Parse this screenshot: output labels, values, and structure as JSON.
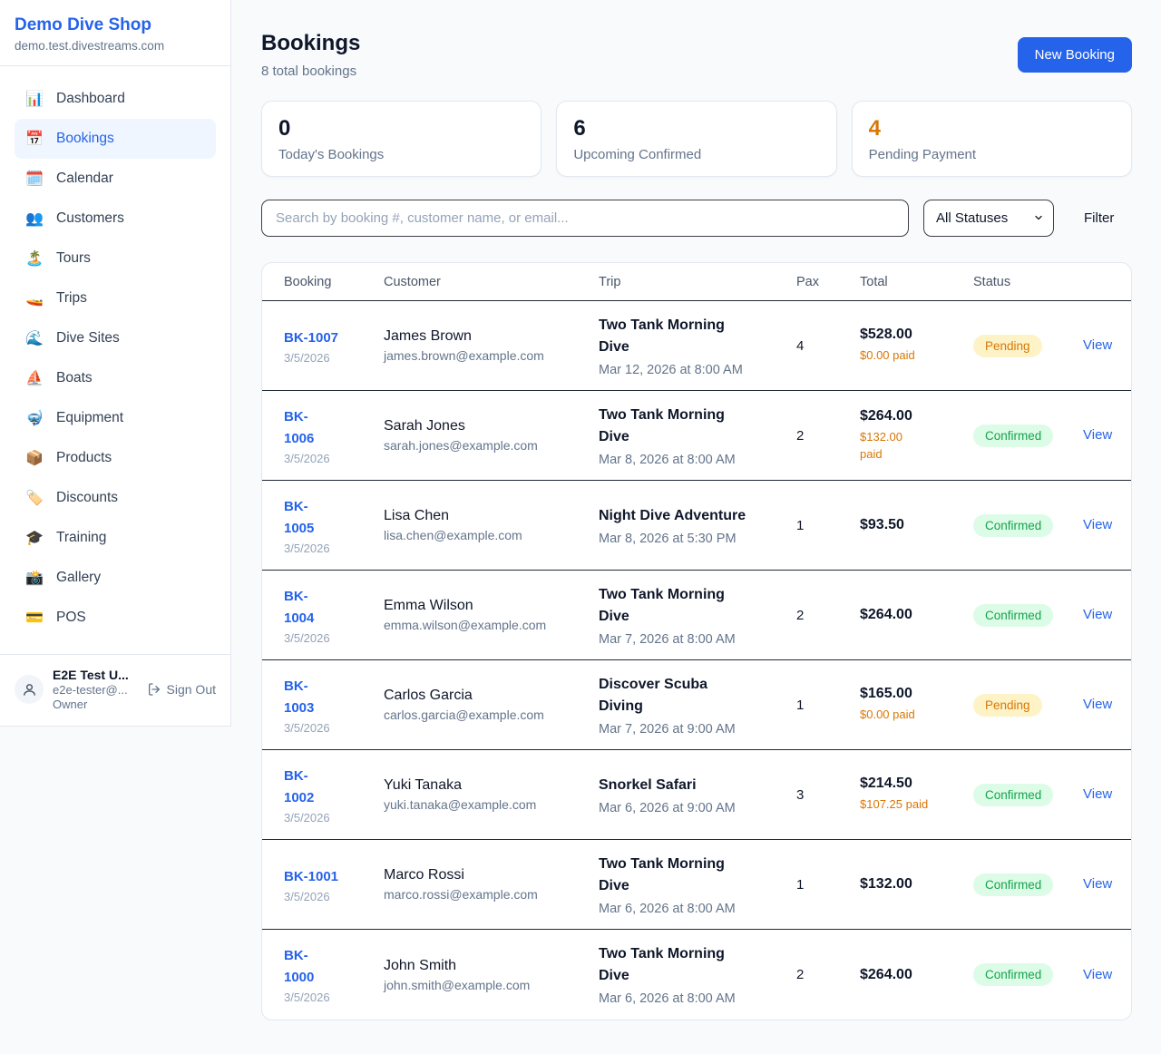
{
  "colors": {
    "accent": "#2563eb",
    "pending_text": "#d97706",
    "pending_bg": "#fef3c7",
    "confirmed_text": "#16a34a",
    "confirmed_bg": "#dcfce7",
    "stat_warning": "#d97706"
  },
  "sidebar": {
    "shop_name": "Demo Dive Shop",
    "domain": "demo.test.divestreams.com",
    "items": [
      {
        "icon": "📊",
        "icon_name": "bar-chart-icon",
        "label": "Dashboard",
        "active": false
      },
      {
        "icon": "📅",
        "icon_name": "calendar-icon",
        "label": "Bookings",
        "active": true
      },
      {
        "icon": "🗓️",
        "icon_name": "spiral-calendar-icon",
        "label": "Calendar",
        "active": false
      },
      {
        "icon": "👥",
        "icon_name": "people-icon",
        "label": "Customers",
        "active": false
      },
      {
        "icon": "🏝️",
        "icon_name": "island-icon",
        "label": "Tours",
        "active": false
      },
      {
        "icon": "🚤",
        "icon_name": "speedboat-icon",
        "label": "Trips",
        "active": false
      },
      {
        "icon": "🌊",
        "icon_name": "wave-icon",
        "label": "Dive Sites",
        "active": false
      },
      {
        "icon": "⛵",
        "icon_name": "sailboat-icon",
        "label": "Boats",
        "active": false
      },
      {
        "icon": "🤿",
        "icon_name": "diving-mask-icon",
        "label": "Equipment",
        "active": false
      },
      {
        "icon": "📦",
        "icon_name": "package-icon",
        "label": "Products",
        "active": false
      },
      {
        "icon": "🏷️",
        "icon_name": "tag-icon",
        "label": "Discounts",
        "active": false
      },
      {
        "icon": "🎓",
        "icon_name": "graduation-cap-icon",
        "label": "Training",
        "active": false
      },
      {
        "icon": "📸",
        "icon_name": "camera-icon",
        "label": "Gallery",
        "active": false
      },
      {
        "icon": "💳",
        "icon_name": "credit-card-icon",
        "label": "POS",
        "active": false
      }
    ],
    "user": {
      "name": "E2E Test U...",
      "email": "e2e-tester@...",
      "role": "Owner",
      "sign_out_label": "Sign Out"
    }
  },
  "header": {
    "title": "Bookings",
    "subtitle": "8 total bookings",
    "new_booking_label": "New Booking"
  },
  "stats": [
    {
      "value": "0",
      "label": "Today's Bookings",
      "highlight": false
    },
    {
      "value": "6",
      "label": "Upcoming Confirmed",
      "highlight": false
    },
    {
      "value": "4",
      "label": "Pending Payment",
      "highlight": true
    }
  ],
  "filters": {
    "search_placeholder": "Search by booking #, customer name, or email...",
    "status_selected": "All Statuses",
    "filter_label": "Filter"
  },
  "table": {
    "columns": [
      "Booking",
      "Customer",
      "Trip",
      "Pax",
      "Total",
      "Status"
    ],
    "view_label": "View",
    "rows": [
      {
        "number": "BK-1007",
        "date": "3/5/2026",
        "customer": "James Brown",
        "email": "james.brown@example.com",
        "trip": "Two Tank Morning\nDive",
        "trip_datetime": "Mar 12, 2026 at 8:00 AM",
        "pax": "4",
        "total": "$528.00",
        "paid": "$0.00 paid",
        "status": "Pending"
      },
      {
        "number": "BK-\n1006",
        "date": "3/5/2026",
        "customer": "Sarah Jones",
        "email": "sarah.jones@example.com",
        "trip": "Two Tank Morning\nDive",
        "trip_datetime": "Mar 8, 2026 at 8:00 AM",
        "pax": "2",
        "total": "$264.00",
        "paid": "$132.00\npaid",
        "status": "Confirmed"
      },
      {
        "number": "BK-\n1005",
        "date": "3/5/2026",
        "customer": "Lisa Chen",
        "email": "lisa.chen@example.com",
        "trip": "Night Dive Adventure",
        "trip_datetime": "Mar 8, 2026 at 5:30 PM",
        "pax": "1",
        "total": "$93.50",
        "paid": "",
        "status": "Confirmed"
      },
      {
        "number": "BK-\n1004",
        "date": "3/5/2026",
        "customer": "Emma Wilson",
        "email": "emma.wilson@example.com",
        "trip": "Two Tank Morning\nDive",
        "trip_datetime": "Mar 7, 2026 at 8:00 AM",
        "pax": "2",
        "total": "$264.00",
        "paid": "",
        "status": "Confirmed"
      },
      {
        "number": "BK-\n1003",
        "date": "3/5/2026",
        "customer": "Carlos Garcia",
        "email": "carlos.garcia@example.com",
        "trip": "Discover Scuba\nDiving",
        "trip_datetime": "Mar 7, 2026 at 9:00 AM",
        "pax": "1",
        "total": "$165.00",
        "paid": "$0.00 paid",
        "status": "Pending"
      },
      {
        "number": "BK-\n1002",
        "date": "3/5/2026",
        "customer": "Yuki Tanaka",
        "email": "yuki.tanaka@example.com",
        "trip": "Snorkel Safari",
        "trip_datetime": "Mar 6, 2026 at 9:00 AM",
        "pax": "3",
        "total": "$214.50",
        "paid": "$107.25 paid",
        "status": "Confirmed"
      },
      {
        "number": "BK-1001",
        "date": "3/5/2026",
        "customer": "Marco Rossi",
        "email": "marco.rossi@example.com",
        "trip": "Two Tank Morning\nDive",
        "trip_datetime": "Mar 6, 2026 at 8:00 AM",
        "pax": "1",
        "total": "$132.00",
        "paid": "",
        "status": "Confirmed"
      },
      {
        "number": "BK-\n1000",
        "date": "3/5/2026",
        "customer": "John Smith",
        "email": "john.smith@example.com",
        "trip": "Two Tank Morning\nDive",
        "trip_datetime": "Mar 6, 2026 at 8:00 AM",
        "pax": "2",
        "total": "$264.00",
        "paid": "",
        "status": "Confirmed"
      }
    ]
  }
}
